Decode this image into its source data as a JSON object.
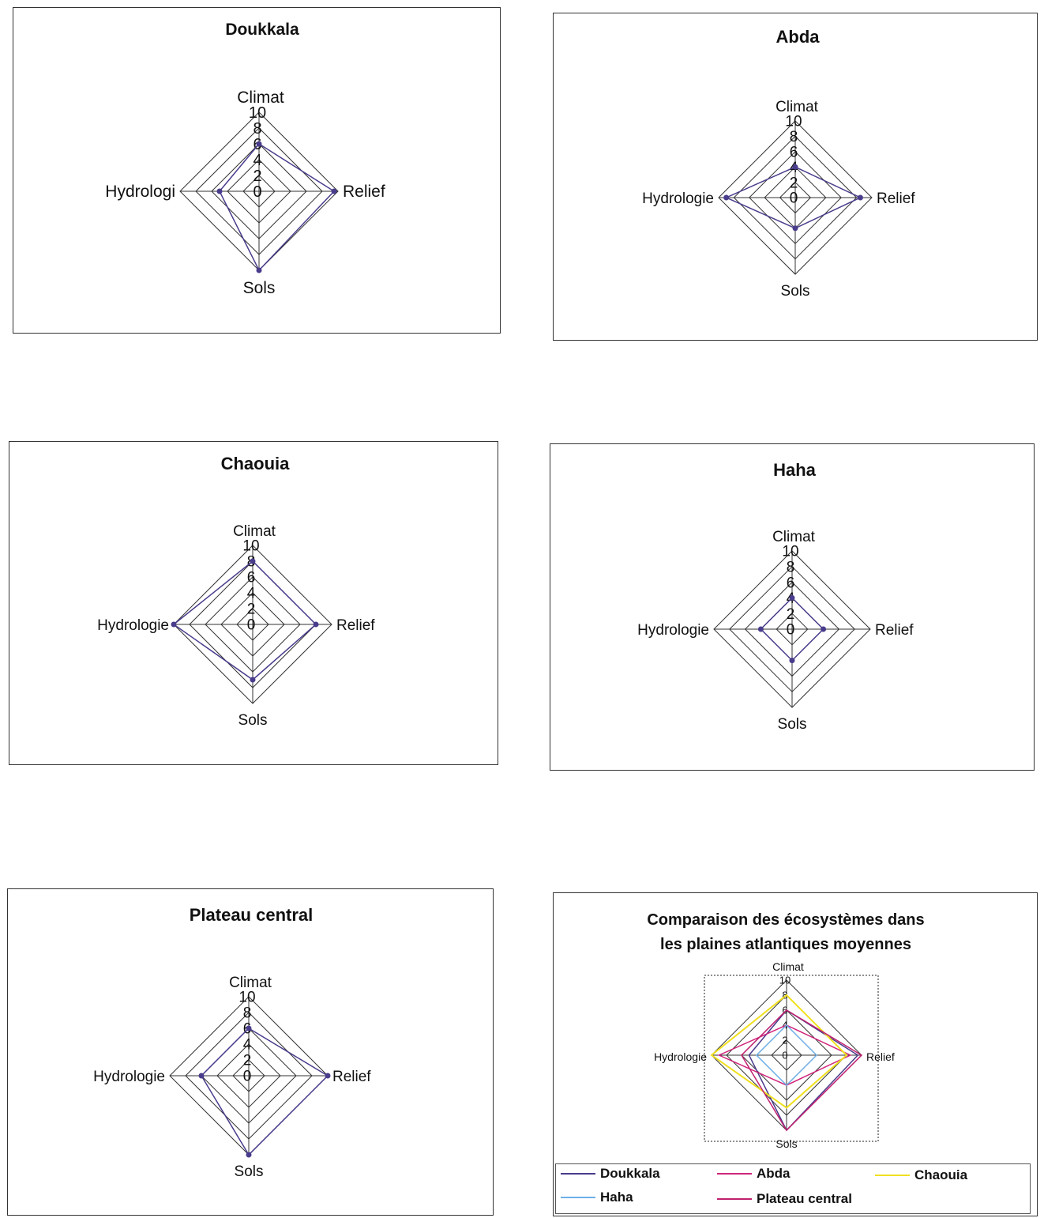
{
  "colors": {
    "doukkala": "#4a3c8c",
    "abda": "#d0247a",
    "chaouia": "#f0e020",
    "haha": "#6fb0e8",
    "plateau": "#c02070",
    "grid": "#333333"
  },
  "chart_data": [
    {
      "type": "radar",
      "title": "Doukkala",
      "axes": [
        "Climat",
        "Relief",
        "Sols",
        "Hydrologi"
      ],
      "ticks": [
        "0",
        "2",
        "4",
        "6",
        "8",
        "10"
      ],
      "rmax": 10,
      "series": [
        {
          "values": [
            6,
            9.5,
            10,
            5
          ],
          "color_key": "doukkala",
          "markers": true
        }
      ]
    },
    {
      "type": "radar",
      "title": "Abda",
      "axes": [
        "Climat",
        "Relief",
        "Sols",
        "Hydrologie"
      ],
      "ticks": [
        "0",
        "2",
        "4",
        "6",
        "8",
        "10"
      ],
      "rmax": 10,
      "series": [
        {
          "values": [
            4,
            8.5,
            4,
            9
          ],
          "color_key": "doukkala",
          "markers": true
        }
      ]
    },
    {
      "type": "radar",
      "title": "Chaouia",
      "axes": [
        "Climat",
        "Relief",
        "Sols",
        "Hydrologie"
      ],
      "ticks": [
        "0",
        "2",
        "4",
        "6",
        "8",
        "10"
      ],
      "rmax": 10,
      "series": [
        {
          "values": [
            8,
            8,
            7,
            10
          ],
          "color_key": "doukkala",
          "markers": true
        }
      ]
    },
    {
      "type": "radar",
      "title": "Haha",
      "axes": [
        "Climat",
        "Relief",
        "Sols",
        "Hydrologie"
      ],
      "ticks": [
        "0",
        "2",
        "4",
        "6",
        "8",
        "10"
      ],
      "rmax": 10,
      "series": [
        {
          "values": [
            4,
            4,
            4,
            4
          ],
          "color_key": "doukkala",
          "markers": true
        }
      ]
    },
    {
      "type": "radar",
      "title": "Plateau central",
      "axes": [
        "Climat",
        "Relief",
        "Sols",
        "Hydrologie"
      ],
      "ticks": [
        "0",
        "2",
        "4",
        "6",
        "8",
        "10"
      ],
      "rmax": 10,
      "series": [
        {
          "values": [
            6,
            10,
            10,
            6
          ],
          "color_key": "doukkala",
          "markers": true
        }
      ]
    },
    {
      "type": "radar",
      "title": "Comparaison des écosystèmes dans\nles plaines atlantiques moyennes",
      "axes": [
        "Climat",
        "Relief",
        "Sols",
        "Hydrologie"
      ],
      "ticks": [
        "0",
        "2",
        "4",
        "6",
        "8",
        "10"
      ],
      "rmax": 10,
      "legend": "bottom",
      "series": [
        {
          "name": "Doukkala",
          "values": [
            6,
            9.5,
            10,
            5
          ],
          "color_key": "doukkala"
        },
        {
          "name": "Abda",
          "values": [
            4,
            8.5,
            4,
            9
          ],
          "color_key": "abda"
        },
        {
          "name": "Chaouia",
          "values": [
            8,
            8,
            7,
            10
          ],
          "color_key": "chaouia"
        },
        {
          "name": "Haha",
          "values": [
            4,
            4,
            4,
            4
          ],
          "color_key": "haha"
        },
        {
          "name": "Plateau central",
          "values": [
            6,
            10,
            10,
            6
          ],
          "color_key": "plateau"
        }
      ]
    }
  ]
}
